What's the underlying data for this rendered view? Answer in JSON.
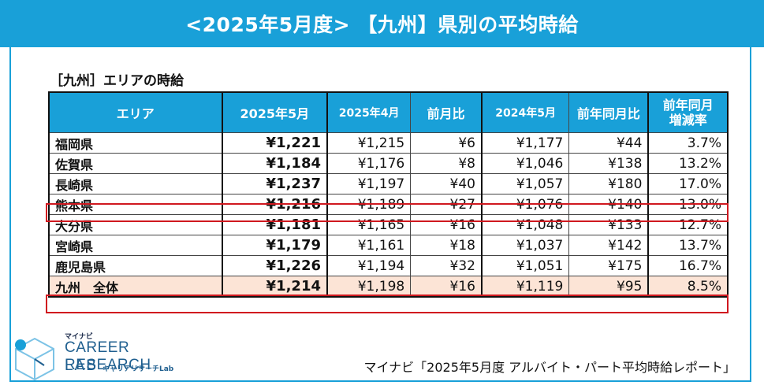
{
  "title": "<2025年5月度> 【九州】県別の平均時給",
  "subtitle": "［九州］エリアの時給",
  "table": {
    "headers": [
      "エリア",
      "2025年5月",
      "2025年4月",
      "前月比",
      "2024年5月",
      "前年同月比",
      "前年同月\n増減率"
    ],
    "rows": [
      {
        "area": "福岡県",
        "may2025": "¥1,221",
        "apr2025": "¥1,215",
        "mom": "¥6",
        "may2024": "¥1,177",
        "yoy": "¥44",
        "yoy_rate": "3.7%"
      },
      {
        "area": "佐賀県",
        "may2025": "¥1,184",
        "apr2025": "¥1,176",
        "mom": "¥8",
        "may2024": "¥1,046",
        "yoy": "¥138",
        "yoy_rate": "13.2%"
      },
      {
        "area": "長崎県",
        "may2025": "¥1,237",
        "apr2025": "¥1,197",
        "mom": "¥40",
        "may2024": "¥1,057",
        "yoy": "¥180",
        "yoy_rate": "17.0%"
      },
      {
        "area": "熊本県",
        "may2025": "¥1,216",
        "apr2025": "¥1,189",
        "mom": "¥27",
        "may2024": "¥1,076",
        "yoy": "¥140",
        "yoy_rate": "13.0%"
      },
      {
        "area": "大分県",
        "may2025": "¥1,181",
        "apr2025": "¥1,165",
        "mom": "¥16",
        "may2024": "¥1,048",
        "yoy": "¥133",
        "yoy_rate": "12.7%"
      },
      {
        "area": "宮崎県",
        "may2025": "¥1,179",
        "apr2025": "¥1,161",
        "mom": "¥18",
        "may2024": "¥1,037",
        "yoy": "¥142",
        "yoy_rate": "13.7%"
      },
      {
        "area": "鹿児島県",
        "may2025": "¥1,226",
        "apr2025": "¥1,194",
        "mom": "¥32",
        "may2024": "¥1,051",
        "yoy": "¥175",
        "yoy_rate": "16.7%"
      },
      {
        "area": "九州　全体",
        "may2025": "¥1,214",
        "apr2025": "¥1,198",
        "mom": "¥16",
        "may2024": "¥1,119",
        "yoy": "¥95",
        "yoy_rate": "8.5%"
      }
    ]
  },
  "logo": {
    "small": "マイナビ",
    "main": "CAREER RESEARCH",
    "lab": "LAB",
    "sub": "キャリアリサーチLab"
  },
  "source": "マイナビ「2025年5月度 アルバイト・パート平均時給レポート」",
  "colors": {
    "accent": "#19a0d8",
    "highlight_border": "#d0181f",
    "total_row_fill": "#fce4d6",
    "logo_blue": "#1f5f8f"
  }
}
